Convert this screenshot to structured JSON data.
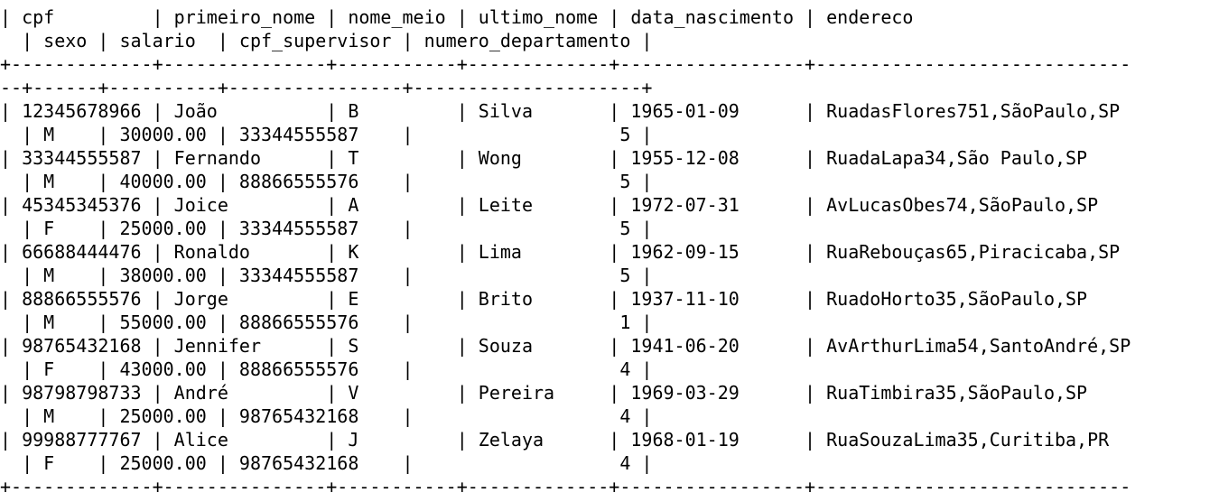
{
  "terminal": {
    "header": {
      "line1": "| cpf         | primeiro_nome | nome_meio | ultimo_nome | data_nascimento | endereco",
      "line2": "  | sexo | salario  | cpf_supervisor | numero_departamento |"
    },
    "separator": {
      "line1": "+-------------+---------------+-----------+-------------+-----------------+-----------------------------",
      "line2": "--+------+----------+----------------+---------------------+"
    },
    "rows": [
      {
        "line1": "| 12345678966 | João          | B         | Silva       | 1965-01-09      | RuadasFlores751,SãoPaulo,SP",
        "line2": "  | M    | 30000.00 | 33344555587    |                   5 |"
      },
      {
        "line1": "| 33344555587 | Fernando      | T         | Wong        | 1955-12-08      | RuadaLapa34,São Paulo,SP",
        "line2": "  | M    | 40000.00 | 88866555576    |                   5 |"
      },
      {
        "line1": "| 45345345376 | Joice         | A         | Leite       | 1972-07-31      | AvLucasObes74,SãoPaulo,SP",
        "line2": "  | F    | 25000.00 | 33344555587    |                   5 |"
      },
      {
        "line1": "| 66688444476 | Ronaldo       | K         | Lima        | 1962-09-15      | RuaRebouças65,Piracicaba,SP",
        "line2": "  | M    | 38000.00 | 33344555587    |                   5 |"
      },
      {
        "line1": "| 88866555576 | Jorge         | E         | Brito       | 1937-11-10      | RuadoHorto35,SãoPaulo,SP",
        "line2": "  | M    | 55000.00 | 88866555576    |                   1 |"
      },
      {
        "line1": "| 98765432168 | Jennifer      | S         | Souza       | 1941-06-20      | AvArthurLima54,SantoAndré,SP",
        "line2": "  | F    | 43000.00 | 88866555576    |                   4 |"
      },
      {
        "line1": "| 98798798733 | André         | V         | Pereira     | 1969-03-29      | RuaTimbira35,SãoPaulo,SP",
        "line2": "  | M    | 25000.00 | 98765432168    |                   4 |"
      },
      {
        "line1": "| 99988777767 | Alice         | J         | Zelaya      | 1968-01-19      | RuaSouzaLima35,Curitiba,PR",
        "line2": "  | F    | 25000.00 | 98765432168    |                   4 |"
      }
    ],
    "footer_separator": "+-------------+---------------+-----------+-------------+-----------------+-----------------------------"
  }
}
